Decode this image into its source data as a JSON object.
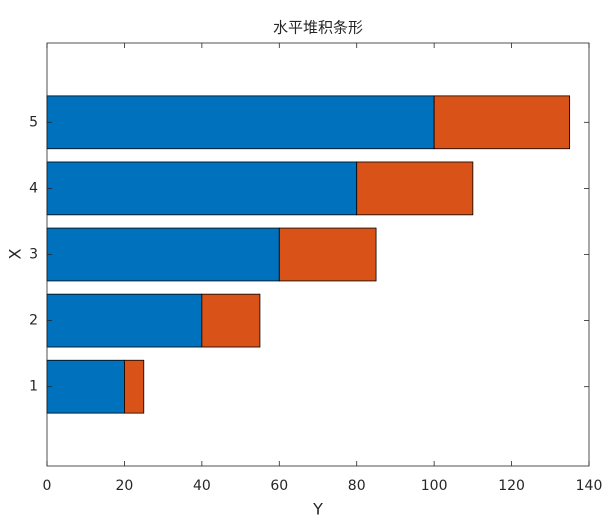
{
  "chart_data": {
    "type": "barh_stacked",
    "title": "水平堆积条形",
    "xlabel": "Y",
    "ylabel": "X",
    "categories": [
      1,
      2,
      3,
      4,
      5
    ],
    "series": [
      {
        "color": "#0072BD",
        "values": [
          20,
          40,
          60,
          80,
          100
        ]
      },
      {
        "color": "#D95319",
        "values": [
          5,
          15,
          25,
          30,
          35
        ]
      }
    ],
    "xlim": [
      0,
      140
    ],
    "xticks": [
      0,
      20,
      40,
      60,
      80,
      100,
      120,
      140
    ],
    "ylim": [
      -0.2,
      6.2
    ],
    "yticks": [
      1,
      2,
      3,
      4,
      5
    ]
  }
}
